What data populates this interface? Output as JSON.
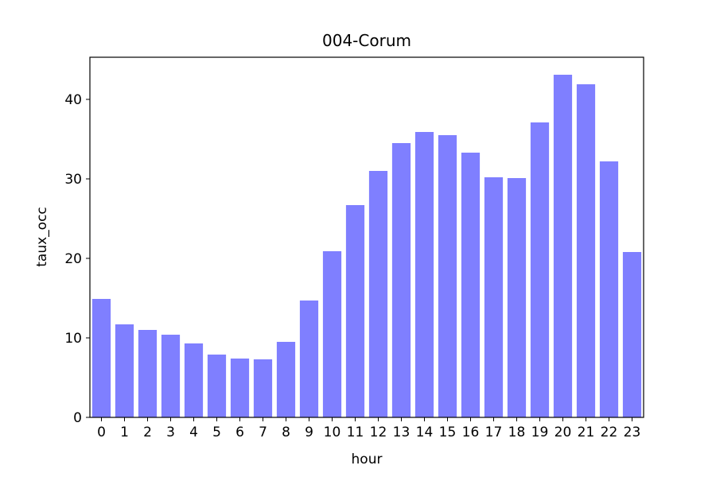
{
  "chart_data": {
    "type": "bar",
    "title": "004-Corum",
    "xlabel": "hour",
    "ylabel": "taux_occ",
    "categories": [
      "0",
      "1",
      "2",
      "3",
      "4",
      "5",
      "6",
      "7",
      "8",
      "9",
      "10",
      "11",
      "12",
      "13",
      "14",
      "15",
      "16",
      "17",
      "18",
      "19",
      "20",
      "21",
      "22",
      "23"
    ],
    "values": [
      14.9,
      11.7,
      11.0,
      10.4,
      9.3,
      7.9,
      7.4,
      7.3,
      9.5,
      14.7,
      20.9,
      26.7,
      31.0,
      34.5,
      35.9,
      35.5,
      33.3,
      30.2,
      30.1,
      37.1,
      43.1,
      41.9,
      32.2,
      20.8
    ],
    "ylim": [
      0,
      45.3
    ],
    "yticks": [
      "0",
      "10",
      "20",
      "30",
      "40"
    ],
    "bar_color": "#7f7fff",
    "grid": false
  }
}
